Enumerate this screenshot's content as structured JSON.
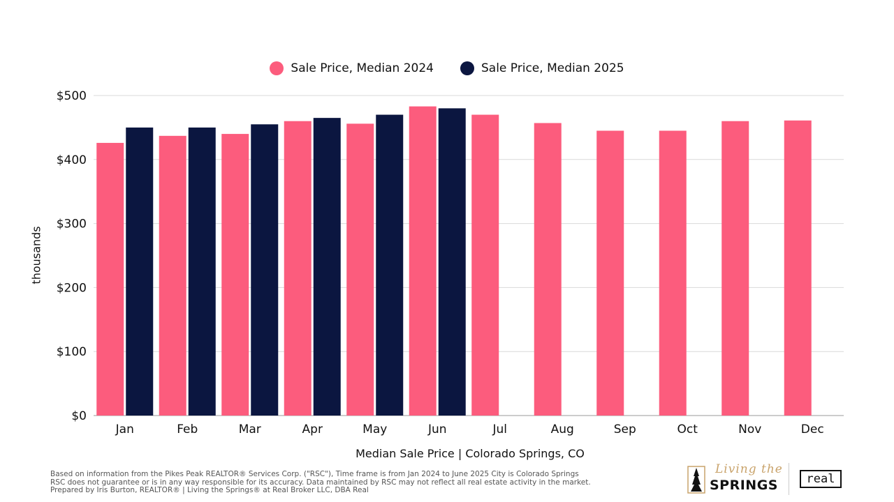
{
  "legend": [
    {
      "label": "Sale Price, Median 2024",
      "color": "#fc5c7d"
    },
    {
      "label": "Sale Price, Median 2025",
      "color": "#0b1640"
    }
  ],
  "chart_data": {
    "type": "bar",
    "categories": [
      "Jan",
      "Feb",
      "Mar",
      "Apr",
      "May",
      "Jun",
      "Jul",
      "Aug",
      "Sep",
      "Oct",
      "Nov",
      "Dec"
    ],
    "series": [
      {
        "name": "Sale Price, Median 2024",
        "color": "#fc5c7d",
        "values": [
          426,
          437,
          440,
          460,
          456,
          483,
          470,
          457,
          445,
          445,
          460,
          461
        ]
      },
      {
        "name": "Sale Price, Median 2025",
        "color": "#0b1640",
        "values": [
          450,
          450,
          455,
          465,
          470,
          480,
          null,
          null,
          null,
          null,
          null,
          null
        ]
      }
    ],
    "ylabel": "thousands",
    "xlabel": "Median Sale Price | Colorado Springs, CO",
    "ylim": [
      0,
      500
    ],
    "yticks": [
      0,
      100,
      200,
      300,
      400,
      500
    ],
    "ytick_labels": [
      "$0",
      "$100",
      "$200",
      "$300",
      "$400",
      "$500"
    ],
    "grid": true,
    "legend_position": "top-center"
  },
  "footnote": [
    "Based on information from the Pikes Peak REALTOR® Services Corp. (\"RSC\"), Time frame is from Jan 2024 to June 2025 City is Colorado Springs",
    "RSC does not guarantee or is in any way responsible for its accuracy. Data maintained by RSC may not reflect all real estate activity in the market.",
    "Prepared by Iris Burton, REALTOR® | Living the Springs® at Real Broker LLC, DBA Real"
  ],
  "logos": {
    "living_script": "Living the",
    "springs": "SPRINGS",
    "real": "real"
  }
}
